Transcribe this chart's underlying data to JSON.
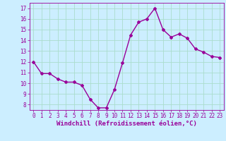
{
  "x": [
    0,
    1,
    2,
    3,
    4,
    5,
    6,
    7,
    8,
    9,
    10,
    11,
    12,
    13,
    14,
    15,
    16,
    17,
    18,
    19,
    20,
    21,
    22,
    23
  ],
  "y": [
    12.0,
    10.9,
    10.9,
    10.4,
    10.1,
    10.1,
    9.8,
    8.5,
    7.7,
    7.7,
    9.4,
    11.9,
    14.5,
    15.7,
    16.0,
    17.0,
    15.0,
    14.3,
    14.6,
    14.2,
    13.2,
    12.9,
    12.5,
    12.4
  ],
  "line_color": "#990099",
  "marker": "D",
  "marker_size": 2.0,
  "bg_color": "#cceeff",
  "grid_color": "#aaddcc",
  "xlabel": "Windchill (Refroidissement éolien,°C)",
  "xlabel_color": "#990099",
  "tick_color": "#990099",
  "ylim": [
    7.5,
    17.5
  ],
  "xlim": [
    -0.5,
    23.5
  ],
  "yticks": [
    8,
    9,
    10,
    11,
    12,
    13,
    14,
    15,
    16,
    17
  ],
  "xticks": [
    0,
    1,
    2,
    3,
    4,
    5,
    6,
    7,
    8,
    9,
    10,
    11,
    12,
    13,
    14,
    15,
    16,
    17,
    18,
    19,
    20,
    21,
    22,
    23
  ],
  "tick_fontsize": 5.5,
  "xlabel_fontsize": 6.5,
  "linewidth": 1.0
}
